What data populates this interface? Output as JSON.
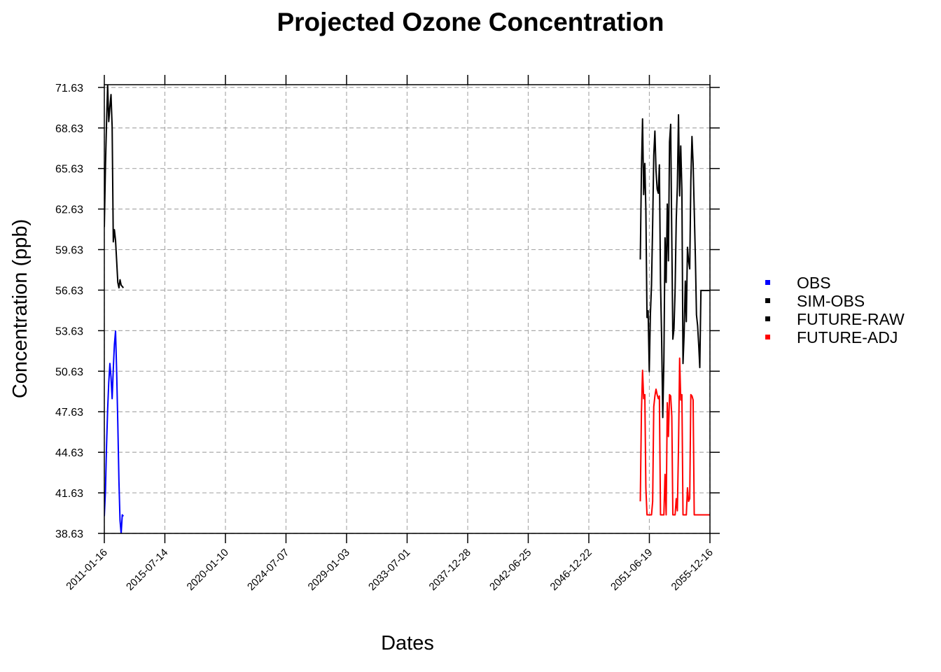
{
  "chart_data": {
    "type": "line",
    "title": "Projected Ozone Concentration",
    "xlabel": "Dates",
    "ylabel": "Concentration (ppb)",
    "x_type": "date",
    "xlim": [
      "2011-01-16",
      "2055-12-16"
    ],
    "ylim": [
      38.63,
      71.83
    ],
    "x_ticks": [
      "2011-01-16",
      "2015-07-14",
      "2020-01-10",
      "2024-07-07",
      "2029-01-03",
      "2033-07-01",
      "2037-12-28",
      "2042-06-25",
      "2046-12-22",
      "2051-06-19",
      "2055-12-16"
    ],
    "y_ticks": [
      "38.63",
      "41.63",
      "44.63",
      "47.63",
      "50.63",
      "53.63",
      "56.63",
      "59.63",
      "62.63",
      "65.63",
      "68.63",
      "71.63"
    ],
    "grid": true,
    "grid_style": "dashed",
    "legend_position": "right",
    "legend": [
      {
        "name": "OBS",
        "color": "#0000ff"
      },
      {
        "name": "SIM-OBS",
        "color": "#000000"
      },
      {
        "name": "FUTURE-RAW",
        "color": "#000000"
      },
      {
        "name": "FUTURE-ADJ",
        "color": "#ff0000"
      }
    ],
    "series": [
      {
        "name": "OBS",
        "color": "#0000ff",
        "x": [
          "2011-01-16",
          "2011-02-16",
          "2011-03-16",
          "2011-04-16",
          "2011-05-16",
          "2011-06-16",
          "2011-07-16",
          "2011-08-16",
          "2011-09-16",
          "2011-10-16",
          "2011-11-16",
          "2011-12-16",
          "2012-01-16",
          "2012-02-16",
          "2012-03-16",
          "2012-04-16",
          "2012-05-16",
          "2012-06-16"
        ],
        "y": [
          39.9,
          41.8,
          45.0,
          47.8,
          49.8,
          51.2,
          50.2,
          48.6,
          50.8,
          52.6,
          53.6,
          50.6,
          46.8,
          42.5,
          39.6,
          38.6,
          40.0,
          39.9
        ]
      },
      {
        "name": "SIM-OBS",
        "color": "#000000",
        "x": [
          "2011-01-16",
          "2011-02-16",
          "2011-03-16",
          "2011-04-16",
          "2011-05-16",
          "2011-06-16",
          "2011-07-16",
          "2011-08-16",
          "2011-09-16",
          "2011-10-16",
          "2011-11-16",
          "2011-12-16",
          "2012-01-16",
          "2012-02-16",
          "2012-03-16",
          "2012-04-16",
          "2012-05-16",
          "2012-06-16"
        ],
        "y": [
          61.3,
          65.8,
          68.9,
          71.8,
          69.1,
          70.2,
          71.1,
          68.7,
          60.2,
          61.1,
          60.3,
          58.8,
          57.2,
          56.8,
          57.4,
          57.0,
          56.9,
          56.8
        ]
      },
      {
        "name": "FUTURE-RAW",
        "color": "#000000",
        "x": [
          "2050-10-16",
          "2050-11-16",
          "2050-12-16",
          "2051-01-16",
          "2051-02-16",
          "2051-03-16",
          "2051-04-16",
          "2051-05-16",
          "2051-06-16",
          "2051-07-16",
          "2051-08-16",
          "2051-09-16",
          "2051-10-16",
          "2051-11-16",
          "2051-12-16",
          "2052-01-16",
          "2052-02-16",
          "2052-03-16",
          "2052-04-16",
          "2052-05-16",
          "2052-06-16",
          "2052-07-16",
          "2052-08-16",
          "2052-09-16",
          "2052-10-16",
          "2052-11-16",
          "2052-12-16",
          "2053-01-16",
          "2053-02-16",
          "2053-03-16",
          "2053-04-16",
          "2053-05-16",
          "2053-06-16",
          "2053-07-16",
          "2053-08-16",
          "2053-09-16",
          "2053-10-16",
          "2053-11-16",
          "2053-12-16",
          "2054-01-16",
          "2054-02-16",
          "2054-03-16",
          "2054-04-16",
          "2054-05-16",
          "2054-06-16",
          "2054-07-16",
          "2054-08-16",
          "2054-09-16",
          "2054-10-16",
          "2054-11-16",
          "2054-12-16",
          "2055-01-16",
          "2055-02-16",
          "2055-03-16",
          "2055-04-16",
          "2055-05-16",
          "2055-06-16",
          "2055-07-16",
          "2055-08-16",
          "2055-09-16",
          "2055-10-16",
          "2055-11-16",
          "2055-12-16"
        ],
        "y": [
          58.9,
          65.5,
          69.3,
          63.7,
          66.0,
          62.6,
          54.6,
          55.1,
          50.6,
          54.8,
          57.0,
          61.5,
          66.6,
          68.4,
          65.5,
          64.1,
          63.8,
          65.9,
          57.2,
          53.1,
          47.2,
          51.4,
          60.5,
          57.2,
          63.0,
          58.8,
          67.6,
          68.9,
          60.3,
          53.0,
          53.8,
          56.6,
          61.8,
          64.3,
          69.6,
          63.6,
          67.3,
          64.0,
          51.2,
          53.4,
          57.3,
          54.3,
          59.8,
          58.8,
          58.2,
          64.7,
          68.0,
          66.0,
          62.6,
          59.1,
          54.8,
          54.0,
          52.5,
          50.9,
          56.6,
          56.6,
          56.6,
          56.6,
          56.6,
          56.6,
          56.6,
          56.6,
          56.6
        ]
      },
      {
        "name": "FUTURE-ADJ",
        "color": "#ff0000",
        "x": [
          "2050-10-16",
          "2050-11-16",
          "2050-12-16",
          "2051-01-16",
          "2051-02-16",
          "2051-03-16",
          "2051-04-16",
          "2051-05-16",
          "2051-06-16",
          "2051-07-16",
          "2051-08-16",
          "2051-09-16",
          "2051-10-16",
          "2051-11-16",
          "2051-12-16",
          "2052-01-16",
          "2052-02-16",
          "2052-03-16",
          "2052-04-16",
          "2052-05-16",
          "2052-06-16",
          "2052-07-16",
          "2052-08-16",
          "2052-09-16",
          "2052-10-16",
          "2052-11-16",
          "2052-12-16",
          "2053-01-16",
          "2053-02-16",
          "2053-03-16",
          "2053-04-16",
          "2053-05-16",
          "2053-06-16",
          "2053-07-16",
          "2053-08-16",
          "2053-09-16",
          "2053-10-16",
          "2053-11-16",
          "2053-12-16",
          "2054-01-16",
          "2054-02-16",
          "2054-03-16",
          "2054-04-16",
          "2054-05-16",
          "2054-06-16",
          "2054-07-16",
          "2054-08-16",
          "2054-09-16",
          "2054-10-16",
          "2054-11-16",
          "2054-12-16",
          "2055-01-16",
          "2055-02-16",
          "2055-03-16",
          "2055-04-16",
          "2055-05-16",
          "2055-06-16",
          "2055-07-16",
          "2055-08-16",
          "2055-09-16",
          "2055-10-16",
          "2055-11-16",
          "2055-12-16"
        ],
        "y": [
          41.0,
          47.6,
          50.7,
          48.6,
          48.9,
          42.0,
          40.0,
          40.0,
          40.0,
          40.0,
          40.0,
          41.0,
          48.0,
          48.8,
          49.3,
          48.9,
          48.6,
          48.8,
          40.0,
          40.0,
          40.0,
          40.0,
          43.0,
          40.0,
          48.3,
          45.8,
          48.9,
          48.8,
          47.3,
          40.0,
          40.0,
          40.0,
          41.2,
          40.3,
          45.0,
          51.6,
          48.5,
          48.9,
          40.0,
          40.0,
          40.0,
          40.0,
          42.0,
          41.0,
          41.2,
          48.9,
          48.8,
          48.5,
          40.0,
          40.0,
          40.0,
          40.0,
          40.0,
          40.0,
          40.0,
          40.0,
          40.0,
          40.0,
          40.0,
          40.0,
          40.0,
          40.0,
          40.0
        ]
      }
    ]
  }
}
